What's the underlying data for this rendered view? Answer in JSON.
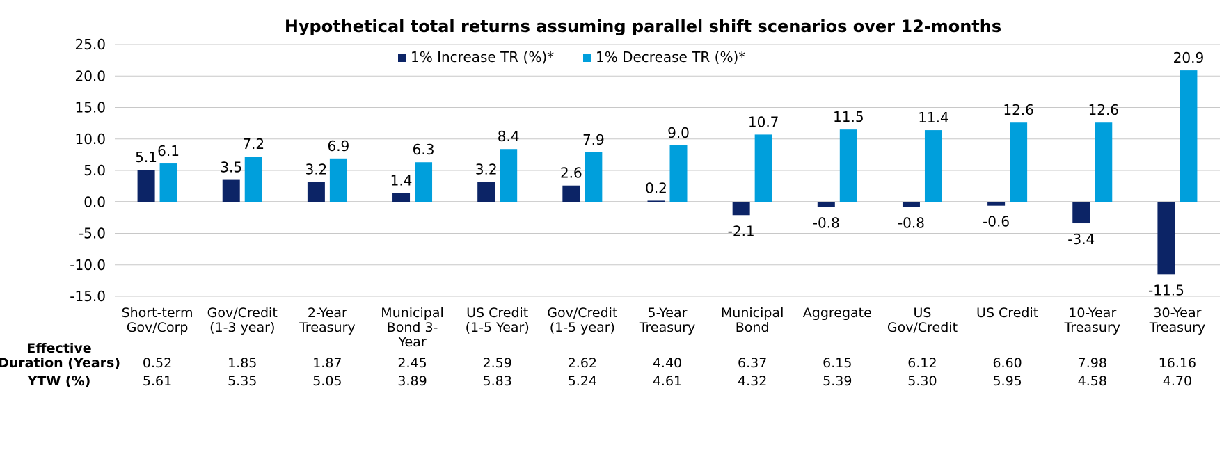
{
  "chart_data": {
    "type": "bar",
    "title": "Hypothetical total returns assuming parallel shift scenarios over 12-months",
    "ylim": [
      -15,
      25
    ],
    "yticks": [
      "25.0",
      "20.0",
      "15.0",
      "10.0",
      "5.0",
      "0.0",
      "-5.0",
      "-10.0",
      "-15.0"
    ],
    "ytick_values": [
      25,
      20,
      15,
      10,
      5,
      0,
      -5,
      -10,
      -15
    ],
    "grid": true,
    "legend_position": "top-center",
    "categories": [
      [
        "Short-term",
        "Gov/Corp"
      ],
      [
        "Gov/Credit",
        "(1-3 year)"
      ],
      [
        "2-Year",
        "Treasury"
      ],
      [
        "Municipal",
        "Bond 3-",
        "Year"
      ],
      [
        "US Credit",
        "(1-5 Year)"
      ],
      [
        "Gov/Credit",
        "(1-5 year)"
      ],
      [
        "5-Year",
        "Treasury"
      ],
      [
        "Municipal",
        "Bond"
      ],
      [
        "Aggregate"
      ],
      [
        "US",
        "Gov/Credit"
      ],
      [
        "US Credit"
      ],
      [
        "10-Year",
        "Treasury"
      ],
      [
        "30-Year",
        "Treasury"
      ]
    ],
    "series": [
      {
        "name": "1% Increase TR (%)*",
        "color": "#0c2466",
        "values": [
          5.1,
          3.5,
          3.2,
          1.4,
          3.2,
          2.6,
          0.2,
          -2.1,
          -0.8,
          -0.8,
          -0.6,
          -3.4,
          -11.5
        ],
        "labels": [
          "5.1",
          "3.5",
          "3.2",
          "1.4",
          "3.2",
          "2.6",
          "0.2",
          "-2.1",
          "-0.8",
          "-0.8",
          "-0.6",
          "-3.4",
          "-11.5"
        ]
      },
      {
        "name": "1% Decrease TR (%)*",
        "color": "#009fdc",
        "values": [
          6.1,
          7.2,
          6.9,
          6.3,
          8.4,
          7.9,
          9.0,
          10.7,
          11.5,
          11.4,
          12.6,
          12.6,
          20.9
        ],
        "labels": [
          "6.1",
          "7.2",
          "6.9",
          "6.3",
          "8.4",
          "7.9",
          "9.0",
          "10.7",
          "11.5",
          "11.4",
          "12.6",
          "12.6",
          "20.9"
        ]
      }
    ]
  },
  "table": {
    "rows": [
      {
        "label": [
          "Effective",
          "Duration (Years)"
        ],
        "values": [
          "0.52",
          "1.85",
          "1.87",
          "2.45",
          "2.59",
          "2.62",
          "4.40",
          "6.37",
          "6.15",
          "6.12",
          "6.60",
          "7.98",
          "16.16"
        ]
      },
      {
        "label": [
          "YTW (%)"
        ],
        "values": [
          "5.61",
          "5.35",
          "5.05",
          "3.89",
          "5.83",
          "5.24",
          "4.61",
          "4.32",
          "5.39",
          "5.30",
          "5.95",
          "4.58",
          "4.70"
        ]
      }
    ]
  }
}
